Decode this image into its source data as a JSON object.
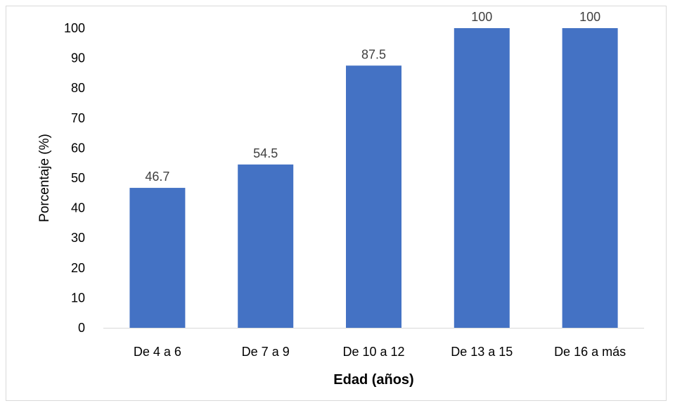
{
  "chart_data": {
    "type": "bar",
    "title": "",
    "xlabel": "Edad (años)",
    "ylabel": "Porcentaje (%)",
    "categories": [
      "De 4 a 6",
      "De 7 a 9",
      "De 10 a 12",
      "De 13 a 15",
      "De 16 a más"
    ],
    "values": [
      46.7,
      54.5,
      87.5,
      100,
      100
    ],
    "data_labels": [
      "46.7",
      "54.5",
      "87.5",
      "100",
      "100"
    ],
    "ylim": [
      0,
      100
    ],
    "yticks": [
      0,
      10,
      20,
      30,
      40,
      50,
      60,
      70,
      80,
      90,
      100
    ],
    "grid": false,
    "legend": "none",
    "bar_color": "#4472C4",
    "axis_color": "#d9d9d9"
  }
}
